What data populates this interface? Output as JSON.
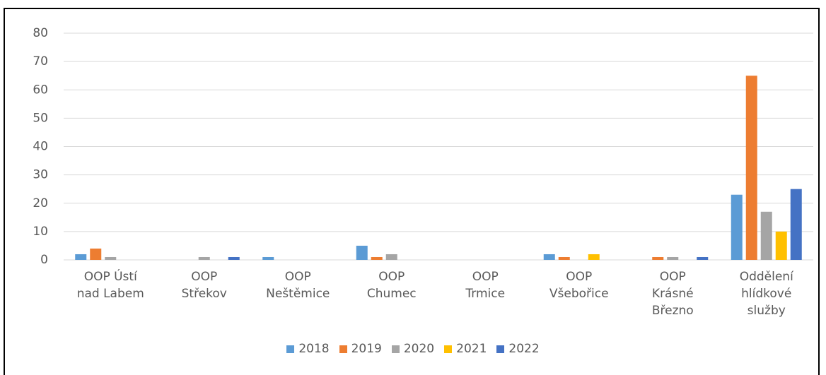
{
  "chart_data": {
    "type": "bar",
    "categories": [
      "OOP Ústí nad Labem",
      "OOP Střekov",
      "OOP Neštěmice",
      "OOP Chumec",
      "OOP Trmice",
      "OOP Všebořice",
      "OOP Krásné Březno",
      "Oddělení hlídkové služby"
    ],
    "series": [
      {
        "name": "2018",
        "color": "#5b9bd5",
        "values": [
          2,
          0,
          1,
          5,
          0,
          2,
          0,
          23
        ]
      },
      {
        "name": "2019",
        "color": "#ed7d31",
        "values": [
          4,
          0,
          0,
          1,
          0,
          1,
          1,
          65
        ]
      },
      {
        "name": "2020",
        "color": "#a5a5a5",
        "values": [
          1,
          1,
          0,
          2,
          0,
          0,
          1,
          17
        ]
      },
      {
        "name": "2021",
        "color": "#ffc000",
        "values": [
          0,
          0,
          0,
          0,
          0,
          2,
          0,
          10
        ]
      },
      {
        "name": "2022",
        "color": "#4472c4",
        "values": [
          0,
          1,
          0,
          0,
          0,
          0,
          1,
          25
        ]
      }
    ],
    "ylim": [
      0,
      80
    ],
    "yticks": [
      0,
      10,
      20,
      30,
      40,
      50,
      60,
      70,
      80
    ],
    "grid": true,
    "legend": "bottom"
  }
}
